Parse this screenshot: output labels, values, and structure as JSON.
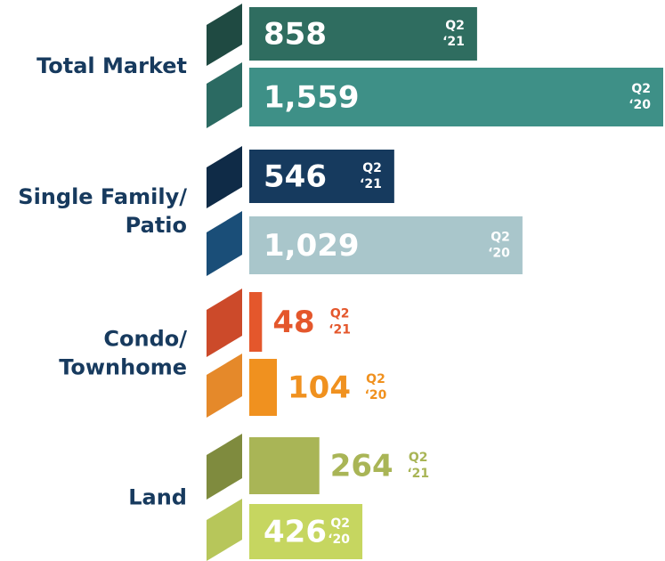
{
  "chart_data": {
    "type": "bar",
    "orientation": "horizontal",
    "categories": [
      "Total Market",
      "Single Family/ Patio",
      "Condo/ Townhome",
      "Land"
    ],
    "category_lines": [
      [
        "Total Market"
      ],
      [
        "Single Family/",
        "Patio"
      ],
      [
        "Condo/",
        "Townhome"
      ],
      [
        "Land"
      ]
    ],
    "series": [
      {
        "period_lines": [
          "Q2",
          "‘21"
        ],
        "values": [
          858,
          546,
          48,
          264
        ],
        "value_labels": [
          "858",
          "546",
          "48",
          "264"
        ],
        "colors": [
          "#2f6d60",
          "#163a5e",
          "#e4572c",
          "#a9b556"
        ],
        "stripe_colors": [
          "#1f4a42",
          "#0f2b47",
          "#cc4a2a",
          "#7f8b3e"
        ]
      },
      {
        "period_lines": [
          "Q2",
          "‘20"
        ],
        "values": [
          1559,
          1029,
          104,
          426
        ],
        "value_labels": [
          "1,559",
          "1,029",
          "104",
          "426"
        ],
        "colors": [
          "#3e9087",
          "#a9c6cb",
          "#f0911f",
          "#c6d660"
        ],
        "stripe_colors": [
          "#2b6a62",
          "#1a4e78",
          "#e5892a",
          "#b7c65a"
        ]
      }
    ]
  }
}
